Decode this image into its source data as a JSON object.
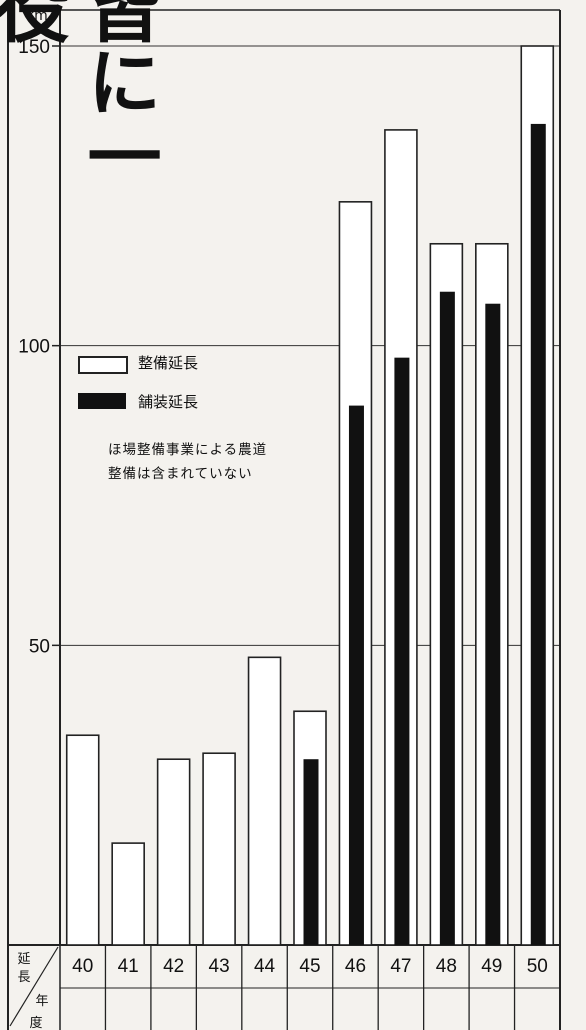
{
  "headline": "皆に一役",
  "legend": {
    "maintenance_label": "整備延長",
    "paving_label": "舗装延長"
  },
  "note_lines": [
    "ほ場整備事業による農道",
    "整備は含まれていない"
  ],
  "table": {
    "row_header_top": "延長",
    "row_header_bottom": "年度"
  },
  "chart_data": {
    "type": "bar",
    "unit": "km",
    "categories": [
      "40",
      "41",
      "42",
      "43",
      "44",
      "45",
      "46",
      "47",
      "48",
      "49",
      "50"
    ],
    "series": [
      {
        "name": "整備延長",
        "values": [
          35,
          17,
          31,
          32,
          48,
          39,
          124,
          136,
          117,
          117,
          150
        ]
      },
      {
        "name": "舗装延長",
        "values": [
          0,
          0,
          0,
          0,
          0,
          31,
          90,
          98,
          109,
          107,
          137
        ]
      }
    ],
    "yticks": [
      50,
      100,
      150
    ],
    "ytick_labels": [
      "50",
      "100",
      "150"
    ],
    "ylim": [
      0,
      155
    ],
    "grid": true
  }
}
